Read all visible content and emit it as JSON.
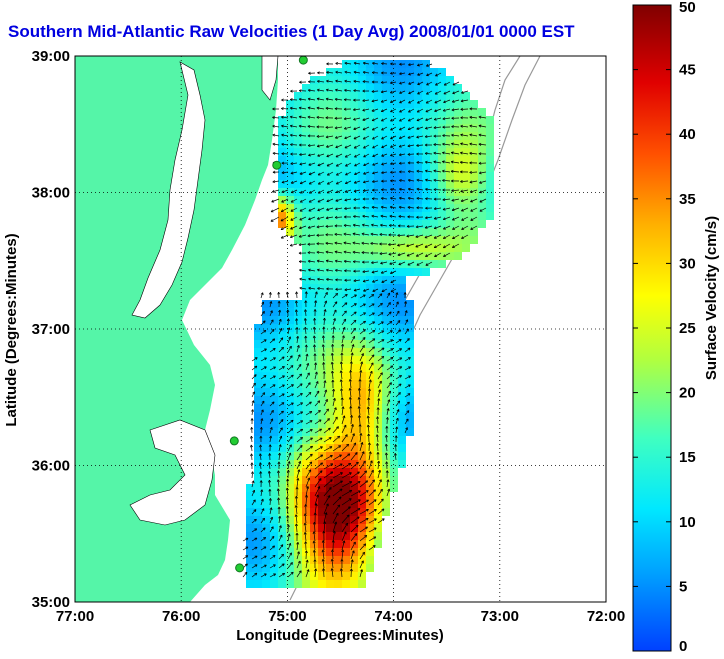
{
  "title": "Southern Mid-Atlantic Raw Velocities (1 Day Avg) 2008/01/01 0000 EST",
  "xlabel": "Longitude (Degrees:Minutes)",
  "ylabel": "Latitude (Degrees:Minutes)",
  "x_ticks": [
    "77:00",
    "76:00",
    "75:00",
    "74:00",
    "73:00",
    "72:00"
  ],
  "y_ticks": [
    "39:00",
    "38:00",
    "37:00",
    "36:00",
    "35:00"
  ],
  "colorbar": {
    "label": "Surface Velocity (cm/s)",
    "ticks": [
      "50",
      "45",
      "40",
      "35",
      "30",
      "25",
      "20",
      "15",
      "10",
      "5",
      "0"
    ],
    "range": [
      0,
      50
    ]
  },
  "colors": {
    "land": "#55f5a8",
    "ocean": "#ffffff",
    "title": "#0000e0",
    "station": "#22cc33"
  },
  "map_extent": {
    "lon": [
      -77,
      -72
    ],
    "lat": [
      35,
      39
    ]
  },
  "stations": [
    {
      "lon": -74.85,
      "lat": 38.97
    },
    {
      "lon": -75.1,
      "lat": 38.2
    },
    {
      "lon": -75.5,
      "lat": 36.18
    },
    {
      "lon": -75.45,
      "lat": 35.25
    }
  ]
}
